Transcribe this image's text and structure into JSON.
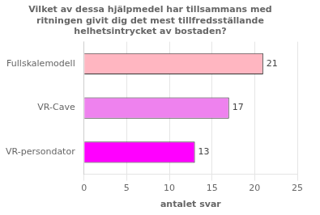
{
  "chart_data": {
    "type": "bar",
    "orientation": "horizontal",
    "title": "Vilket av dessa hjälpmedel har tillsammans med\nritningen givit dig det mest tillfredsställande\nhelhetsintrycket av bostaden?",
    "categories": [
      "VR-persondator",
      "VR-Cave",
      "Fullskalemodell"
    ],
    "values": [
      13,
      17,
      21
    ],
    "colors": [
      "#FF00FF",
      "#EE82EE",
      "#FFB6C1"
    ],
    "xlabel": "antalet svar",
    "xlim": [
      0,
      25
    ],
    "xticks": [
      0,
      5,
      10,
      15,
      20,
      25
    ],
    "grid": true,
    "data_labels": true
  }
}
